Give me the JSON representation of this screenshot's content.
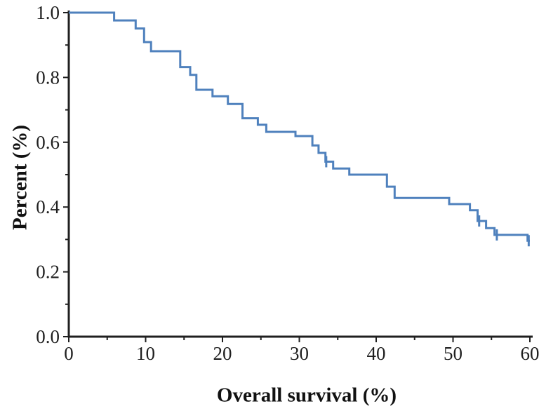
{
  "figure": {
    "background": "#ffffff"
  },
  "colors": {
    "curve": "#4f81bd",
    "axis": "#1f1f1f",
    "tick_text": "#1f1f1f"
  },
  "chart_data": {
    "type": "line",
    "subtype": "kaplan-meier-step-survival-curve",
    "title": "",
    "xlabel": "Overall survival (%)",
    "ylabel": "Percent (%)",
    "xlim": [
      0,
      60
    ],
    "ylim": [
      0.0,
      1.0
    ],
    "grid": false,
    "legend": "none",
    "x_major_ticks": [
      {
        "v": 0,
        "label": "0"
      },
      {
        "v": 10,
        "label": "10"
      },
      {
        "v": 20,
        "label": "20"
      },
      {
        "v": 30,
        "label": "30"
      },
      {
        "v": 40,
        "label": "40"
      },
      {
        "v": 50,
        "label": "50"
      },
      {
        "v": 60,
        "label": "60"
      }
    ],
    "x_minor_ticks": [
      5,
      15,
      25,
      35,
      45,
      55
    ],
    "y_major_ticks": [
      {
        "v": 0.0,
        "label": "0.0"
      },
      {
        "v": 0.2,
        "label": "0.2"
      },
      {
        "v": 0.4,
        "label": "0.4"
      },
      {
        "v": 0.6,
        "label": "0.6"
      },
      {
        "v": 0.8,
        "label": "0.8"
      },
      {
        "v": 1.0,
        "label": "1.0"
      }
    ],
    "y_minor_ticks": [
      0.1,
      0.3,
      0.5,
      0.7,
      0.9
    ],
    "series": [
      {
        "name": "overall-survival",
        "color": "#4f81bd",
        "step_points": [
          [
            0,
            1.0
          ],
          [
            5.9,
            1.0
          ],
          [
            5.9,
            0.976
          ],
          [
            8.7,
            0.976
          ],
          [
            8.7,
            0.951
          ],
          [
            9.8,
            0.951
          ],
          [
            9.8,
            0.909
          ],
          [
            10.7,
            0.909
          ],
          [
            10.7,
            0.881
          ],
          [
            14.5,
            0.881
          ],
          [
            14.5,
            0.832
          ],
          [
            15.8,
            0.832
          ],
          [
            15.8,
            0.808
          ],
          [
            16.6,
            0.808
          ],
          [
            16.6,
            0.762
          ],
          [
            18.7,
            0.762
          ],
          [
            18.7,
            0.742
          ],
          [
            20.7,
            0.742
          ],
          [
            20.7,
            0.718
          ],
          [
            22.6,
            0.718
          ],
          [
            22.6,
            0.674
          ],
          [
            24.6,
            0.674
          ],
          [
            24.6,
            0.654
          ],
          [
            25.7,
            0.654
          ],
          [
            25.7,
            0.632
          ],
          [
            29.5,
            0.632
          ],
          [
            29.5,
            0.619
          ],
          [
            31.7,
            0.619
          ],
          [
            31.7,
            0.59
          ],
          [
            32.5,
            0.59
          ],
          [
            32.5,
            0.567
          ],
          [
            33.4,
            0.567
          ],
          [
            33.4,
            0.54
          ],
          [
            34.4,
            0.54
          ],
          [
            34.4,
            0.519
          ],
          [
            36.5,
            0.519
          ],
          [
            36.5,
            0.5
          ],
          [
            41.4,
            0.5
          ],
          [
            41.4,
            0.463
          ],
          [
            42.4,
            0.463
          ],
          [
            42.4,
            0.428
          ],
          [
            49.5,
            0.428
          ],
          [
            49.5,
            0.409
          ],
          [
            52.2,
            0.409
          ],
          [
            52.2,
            0.39
          ],
          [
            53.2,
            0.39
          ],
          [
            53.2,
            0.357
          ],
          [
            54.3,
            0.357
          ],
          [
            54.3,
            0.335
          ],
          [
            55.4,
            0.335
          ],
          [
            55.4,
            0.314
          ],
          [
            59.7,
            0.314
          ],
          [
            59.7,
            0.296
          ],
          [
            60,
            0.296
          ]
        ],
        "censor_marks": [
          [
            33.5,
            0.54
          ],
          [
            53.4,
            0.357
          ],
          [
            55.7,
            0.314
          ],
          [
            59.85,
            0.296
          ]
        ]
      }
    ]
  }
}
